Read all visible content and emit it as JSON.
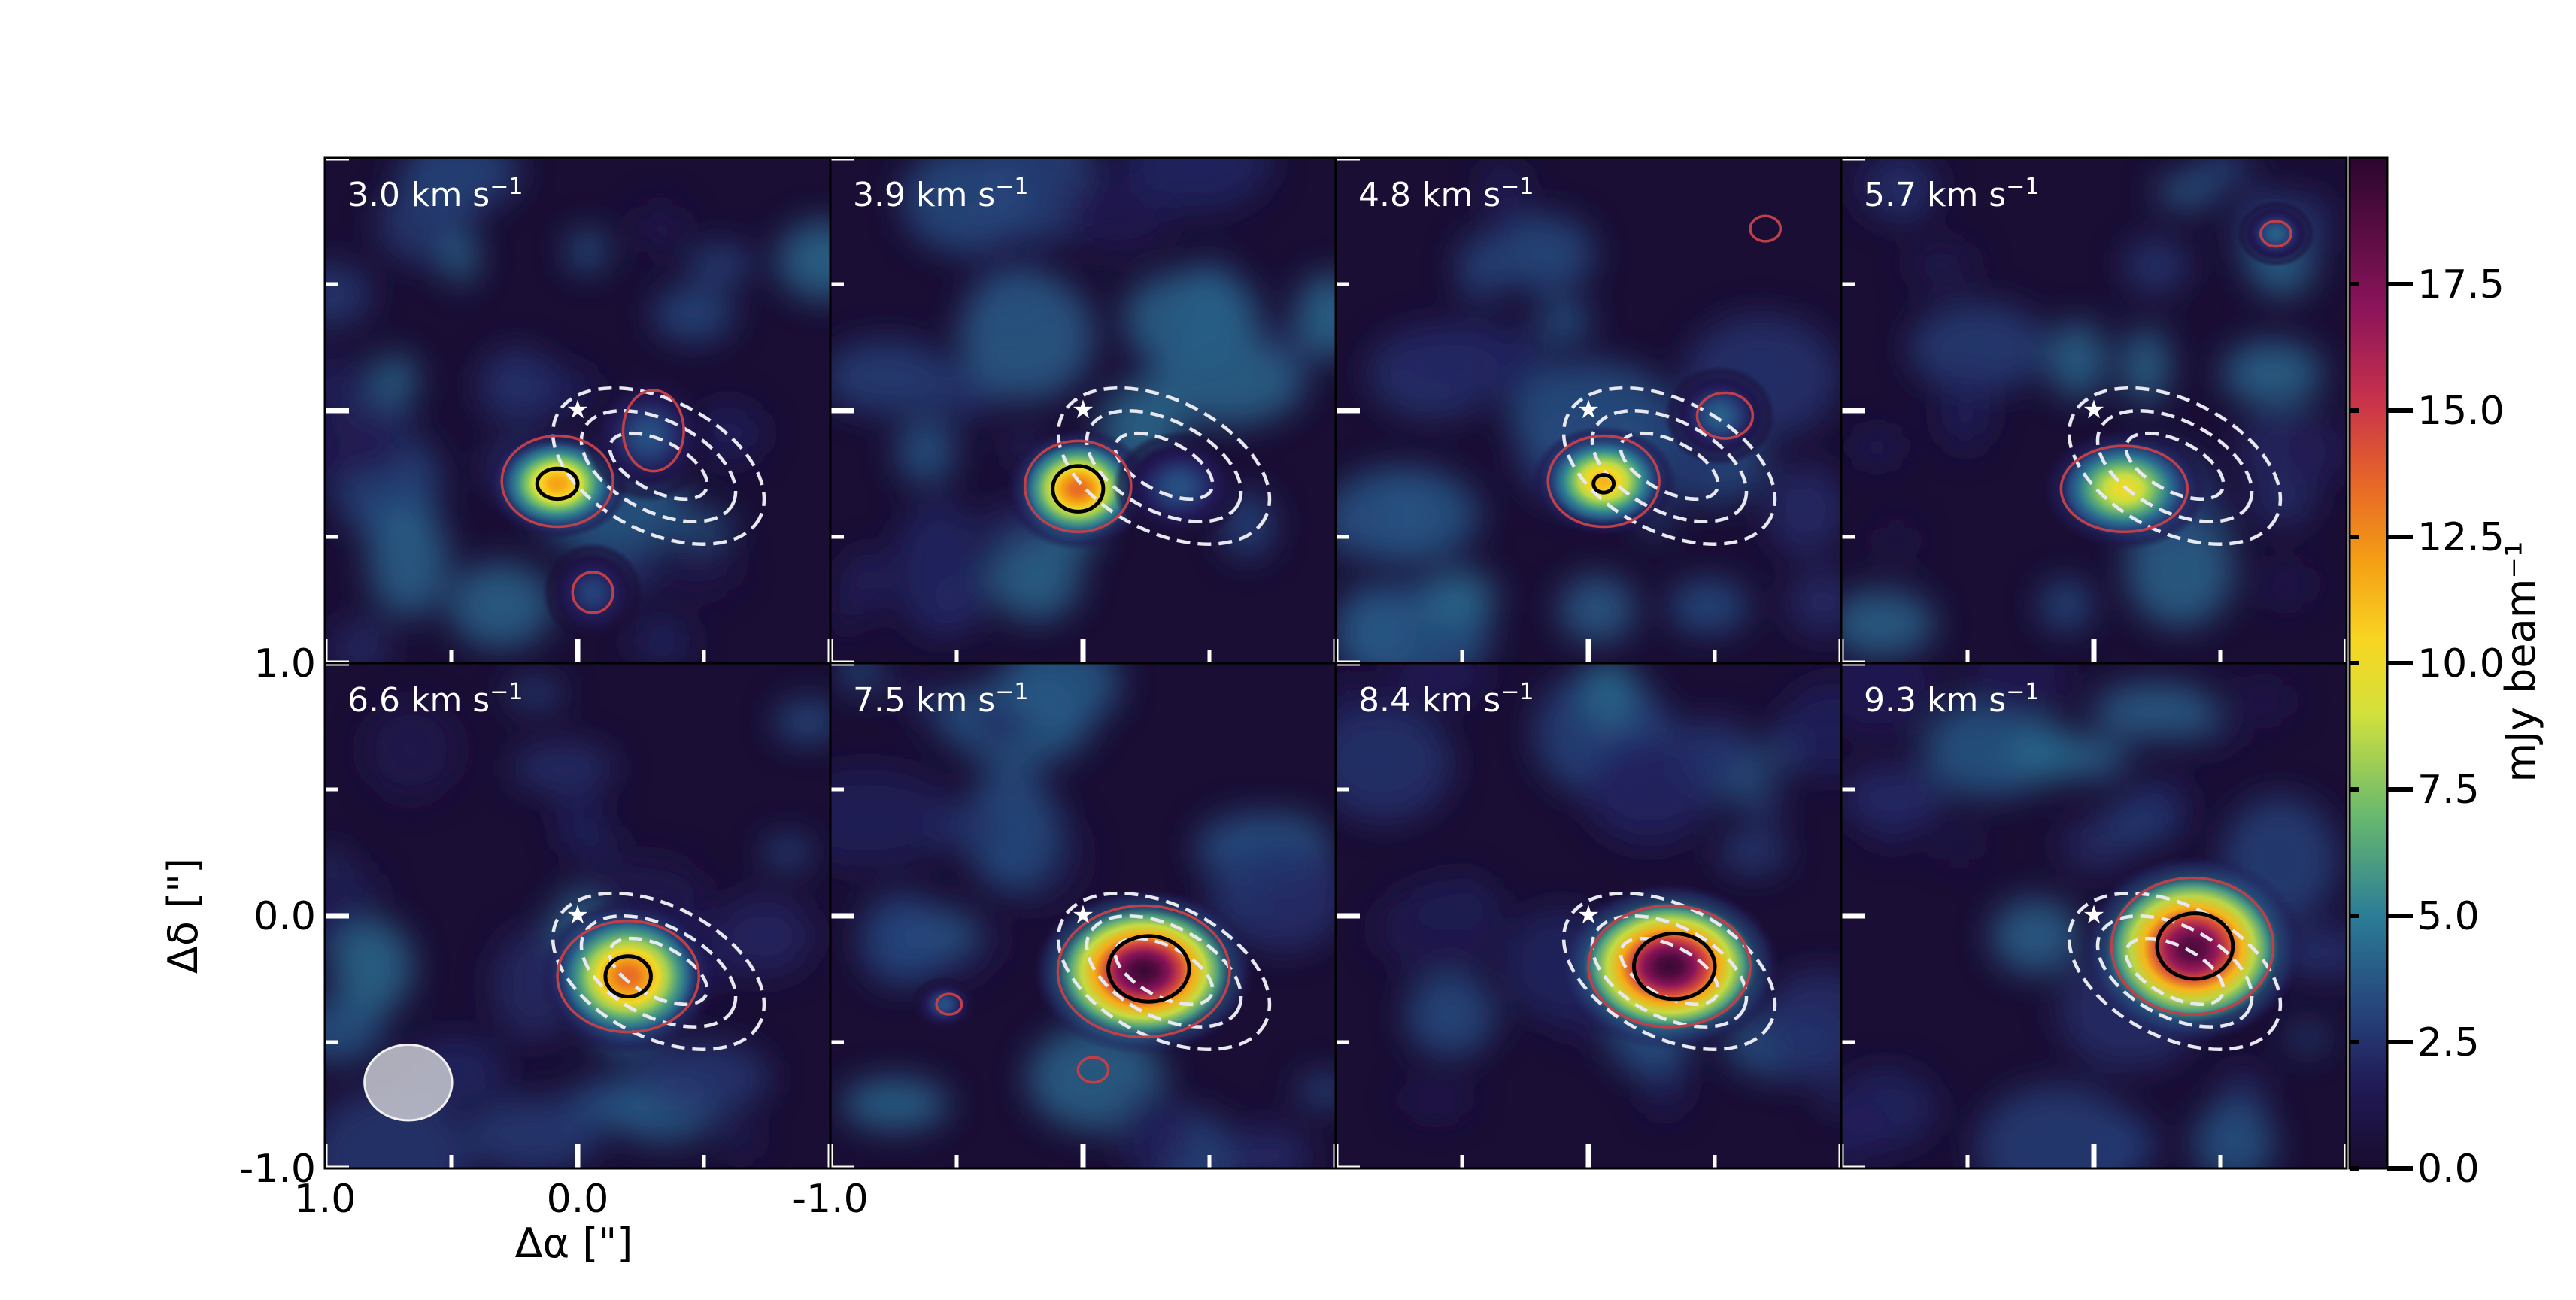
{
  "figure": {
    "ylabel": "Δδ [\"]",
    "xlabel": "Δα [\"]",
    "colorbar_label": "mJy beam⁻¹"
  },
  "chart_data": {
    "type": "heatmap",
    "colormap": "inferno-like (navy → teal → yellow → orange → magenta → dark purple)",
    "x_range": [
      1.0,
      -1.0
    ],
    "y_range": [
      -1.0,
      1.0
    ],
    "x_tick_labels": [
      "1.0",
      "0.0",
      "-1.0"
    ],
    "y_tick_labels": [
      "1.0",
      "0.0",
      "-1.0"
    ],
    "colorbar": {
      "range": [
        0.0,
        20.0
      ],
      "ticks": [
        "0.0",
        "2.5",
        "5.0",
        "7.5",
        "10.0",
        "12.5",
        "15.0",
        "17.5"
      ],
      "label": "mJy beam⁻¹"
    },
    "star_marker": {
      "x": 0.0,
      "y": 0.0,
      "color": "#ffffff"
    },
    "beam": {
      "x": 0.67,
      "y": -0.66,
      "major": 0.33,
      "minor": 0.26,
      "color": "#c8c8d0"
    },
    "dust_contours": {
      "style": "dashed",
      "color": "#e8e8f0",
      "center": {
        "x": -0.32,
        "y": -0.22
      },
      "pa_deg": 27,
      "levels": [
        {
          "a": 0.21,
          "b": 0.1
        },
        {
          "a": 0.33,
          "b": 0.18
        },
        {
          "a": 0.45,
          "b": 0.26
        }
      ]
    },
    "panels": [
      {
        "velocity": "3.0",
        "unit": "km s",
        "sup": "−1",
        "blobs": [
          {
            "x": 0.08,
            "y": -0.29,
            "sx": 0.13,
            "sy": 0.1,
            "peak": 12.0
          },
          {
            "x": -0.28,
            "y": -0.1,
            "sx": 0.12,
            "sy": 0.12,
            "peak": 3.5
          },
          {
            "x": -0.06,
            "y": -0.72,
            "sx": 0.09,
            "sy": 0.09,
            "peak": 3.0
          }
        ],
        "red": [
          {
            "x": 0.08,
            "y": -0.28,
            "rx": 0.22,
            "ry": 0.18
          },
          {
            "x": -0.3,
            "y": -0.08,
            "rx": 0.12,
            "ry": 0.16
          },
          {
            "x": -0.06,
            "y": -0.72,
            "rx": 0.08,
            "ry": 0.08
          }
        ],
        "black": [
          {
            "x": 0.08,
            "y": -0.29,
            "rx": 0.08,
            "ry": 0.06
          }
        ]
      },
      {
        "velocity": "3.9",
        "unit": "km s",
        "sup": "−1",
        "blobs": [
          {
            "x": 0.02,
            "y": -0.31,
            "sx": 0.13,
            "sy": 0.11,
            "peak": 13.5
          },
          {
            "x": -0.38,
            "y": -0.3,
            "sx": 0.12,
            "sy": 0.1,
            "peak": 3.5
          }
        ],
        "red": [
          {
            "x": 0.02,
            "y": -0.3,
            "rx": 0.21,
            "ry": 0.18
          }
        ],
        "black": [
          {
            "x": 0.02,
            "y": -0.31,
            "rx": 0.1,
            "ry": 0.09
          }
        ]
      },
      {
        "velocity": "4.8",
        "unit": "km s",
        "sup": "−1",
        "blobs": [
          {
            "x": -0.06,
            "y": -0.28,
            "sx": 0.13,
            "sy": 0.1,
            "peak": 11.5
          },
          {
            "x": -0.52,
            "y": -0.02,
            "sx": 0.1,
            "sy": 0.09,
            "peak": 4.0
          }
        ],
        "red": [
          {
            "x": -0.06,
            "y": -0.28,
            "rx": 0.22,
            "ry": 0.18
          },
          {
            "x": -0.54,
            "y": -0.02,
            "rx": 0.11,
            "ry": 0.09
          },
          {
            "x": -0.7,
            "y": 0.72,
            "rx": 0.06,
            "ry": 0.05
          }
        ],
        "black": [
          {
            "x": -0.06,
            "y": -0.29,
            "rx": 0.04,
            "ry": 0.035
          }
        ]
      },
      {
        "velocity": "5.7",
        "unit": "km s",
        "sup": "−1",
        "blobs": [
          {
            "x": -0.12,
            "y": -0.31,
            "sx": 0.15,
            "sy": 0.11,
            "peak": 10.0
          },
          {
            "x": -0.72,
            "y": 0.7,
            "sx": 0.07,
            "sy": 0.06,
            "peak": 4.0
          }
        ],
        "red": [
          {
            "x": -0.12,
            "y": -0.31,
            "rx": 0.25,
            "ry": 0.17
          },
          {
            "x": -0.72,
            "y": 0.7,
            "rx": 0.06,
            "ry": 0.05
          }
        ],
        "black": []
      },
      {
        "velocity": "6.6",
        "unit": "km s",
        "sup": "−1",
        "blobs": [
          {
            "x": -0.2,
            "y": -0.24,
            "sx": 0.16,
            "sy": 0.14,
            "peak": 13.5
          }
        ],
        "red": [
          {
            "x": -0.2,
            "y": -0.24,
            "rx": 0.28,
            "ry": 0.22
          }
        ],
        "black": [
          {
            "x": -0.2,
            "y": -0.24,
            "rx": 0.09,
            "ry": 0.08
          }
        ]
      },
      {
        "velocity": "7.5",
        "unit": "km s",
        "sup": "−1",
        "blobs": [
          {
            "x": -0.24,
            "y": -0.22,
            "sx": 0.2,
            "sy": 0.15,
            "peak": 19.5
          },
          {
            "x": 0.55,
            "y": -0.35,
            "sx": 0.06,
            "sy": 0.05,
            "peak": 3.5
          }
        ],
        "red": [
          {
            "x": -0.24,
            "y": -0.22,
            "rx": 0.34,
            "ry": 0.26
          },
          {
            "x": 0.53,
            "y": -0.35,
            "rx": 0.05,
            "ry": 0.04
          },
          {
            "x": -0.04,
            "y": -0.61,
            "rx": 0.06,
            "ry": 0.05
          }
        ],
        "black": [
          {
            "x": -0.26,
            "y": -0.21,
            "rx": 0.16,
            "ry": 0.13
          }
        ]
      },
      {
        "velocity": "8.4",
        "unit": "km s",
        "sup": "−1",
        "blobs": [
          {
            "x": -0.32,
            "y": -0.2,
            "sx": 0.2,
            "sy": 0.15,
            "peak": 19.5
          }
        ],
        "red": [
          {
            "x": -0.32,
            "y": -0.2,
            "rx": 0.32,
            "ry": 0.24
          }
        ],
        "black": [
          {
            "x": -0.34,
            "y": -0.2,
            "rx": 0.16,
            "ry": 0.13
          }
        ]
      },
      {
        "velocity": "9.3",
        "unit": "km s",
        "sup": "−1",
        "blobs": [
          {
            "x": -0.39,
            "y": -0.13,
            "sx": 0.2,
            "sy": 0.17,
            "peak": 19.0
          }
        ],
        "red": [
          {
            "x": -0.39,
            "y": -0.12,
            "rx": 0.32,
            "ry": 0.27
          }
        ],
        "black": [
          {
            "x": -0.4,
            "y": -0.12,
            "rx": 0.15,
            "ry": 0.13
          }
        ]
      }
    ]
  }
}
